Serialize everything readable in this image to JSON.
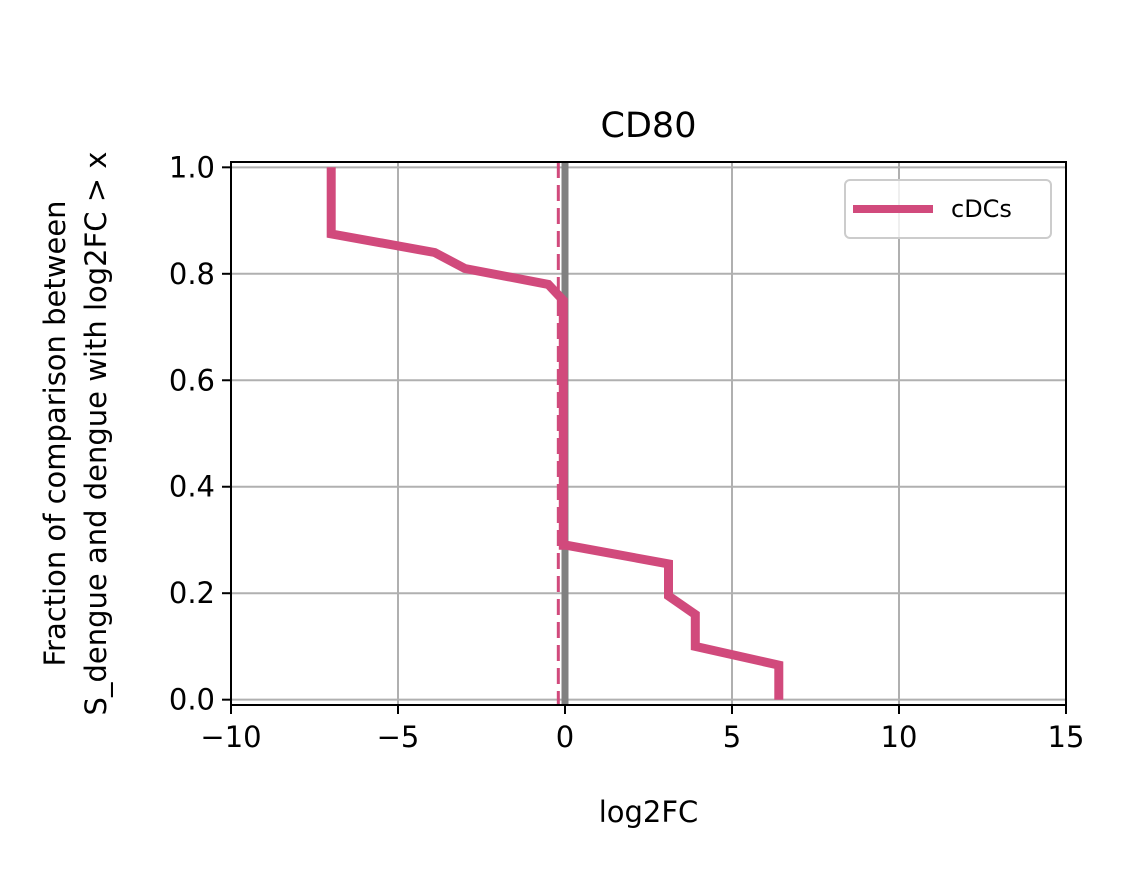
{
  "chart_data": {
    "type": "line",
    "title": "CD80",
    "xlabel": "log2FC",
    "ylabel_line1": "Fraction of comparison between",
    "ylabel_line2": "S_dengue and dengue with log2FC > x",
    "xlim": [
      -10,
      15
    ],
    "ylim": [
      -0.01,
      1.01
    ],
    "xticks": [
      -10,
      -5,
      0,
      5,
      10,
      15
    ],
    "xtick_labels": [
      "−10",
      "−5",
      "0",
      "5",
      "10",
      "15"
    ],
    "yticks": [
      0.0,
      0.2,
      0.4,
      0.6,
      0.8,
      1.0
    ],
    "ytick_labels": [
      "0.0",
      "0.2",
      "0.4",
      "0.6",
      "0.8",
      "1.0"
    ],
    "grid": true,
    "legend_position": "upper right",
    "reference_lines": [
      {
        "x": 0,
        "style": "solid",
        "color": "#808080"
      },
      {
        "x": -0.2,
        "style": "dashed",
        "color": "#d14a7c"
      }
    ],
    "series": [
      {
        "name": "cDCs",
        "color": "#d14a7c",
        "x": [
          -7,
          -7,
          -3.9,
          -3,
          -0.5,
          -0.05,
          -0.05,
          0.05,
          0.05,
          3.1,
          3.1,
          3.9,
          3.9,
          6.4,
          6.4
        ],
        "y": [
          1.0,
          0.875,
          0.84,
          0.81,
          0.78,
          0.75,
          0.29,
          0.29,
          0.29,
          0.255,
          0.195,
          0.16,
          0.1,
          0.065,
          0.0
        ]
      }
    ]
  }
}
